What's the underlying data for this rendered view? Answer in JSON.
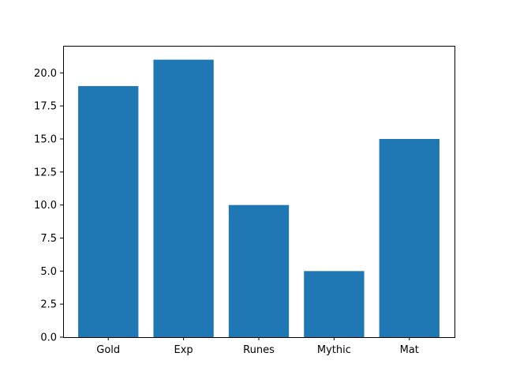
{
  "chart_data": {
    "type": "bar",
    "categories": [
      "Gold",
      "Exp",
      "Runes",
      "Mythic",
      "Mat"
    ],
    "values": [
      19,
      21,
      10,
      5,
      15
    ],
    "title": "",
    "xlabel": "",
    "ylabel": "",
    "ylim": [
      0,
      22.05
    ],
    "yticks": [
      "0.0",
      "2.5",
      "5.0",
      "7.5",
      "10.0",
      "12.5",
      "15.0",
      "17.5",
      "20.0"
    ],
    "grid": false,
    "bar_color": "#1f77b4"
  }
}
